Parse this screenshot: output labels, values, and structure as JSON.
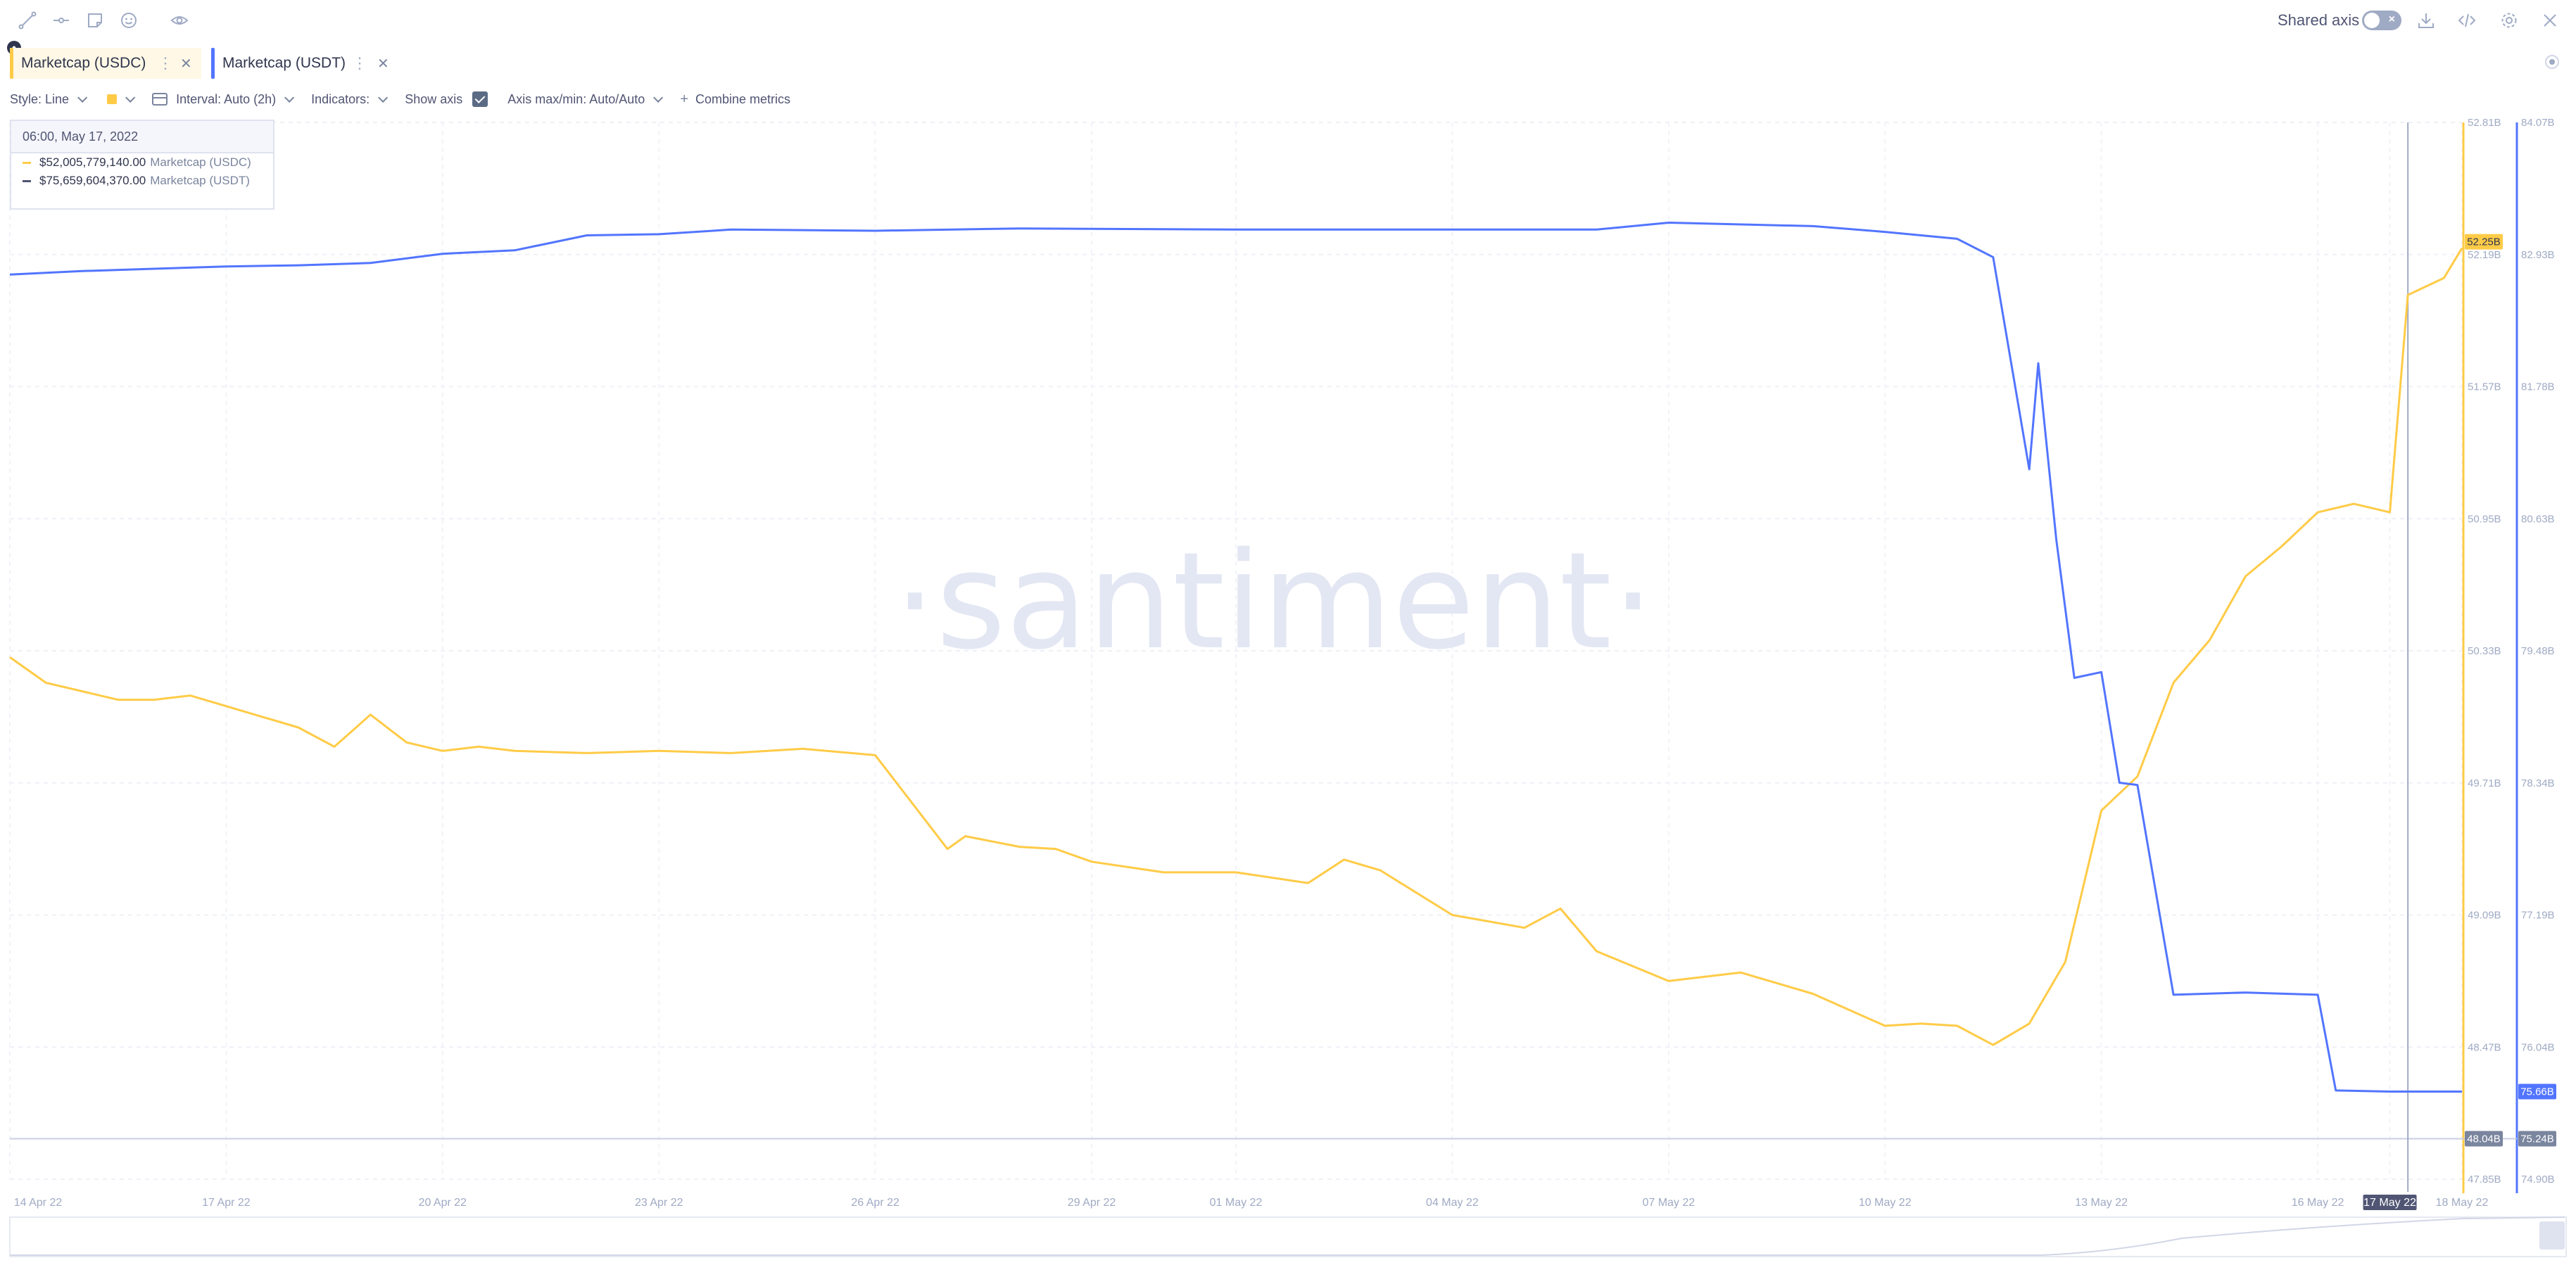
{
  "toolbar": {
    "icons": [
      "line-draw-icon",
      "segment-draw-icon",
      "note-icon",
      "emoji-icon",
      "eye-icon"
    ],
    "shared_axis_label": "Shared axis",
    "right_icons": [
      "download-icon",
      "embed-code-icon",
      "settings-icon",
      "close-icon"
    ]
  },
  "metrics": [
    {
      "label": "Marketcap (USDC)",
      "color": "#ffcb47"
    },
    {
      "label": "Marketcap (USDT)",
      "color": "#5275ff"
    }
  ],
  "settings": {
    "style": "Style: Line",
    "interval": "Interval: Auto (2h)",
    "indicators": "Indicators:",
    "show_axis": "Show axis",
    "axis_minmax": "Axis max/min: Auto/Auto",
    "combine": "Combine metrics"
  },
  "tooltip": {
    "date": "06:00, May 17, 2022",
    "rows": [
      {
        "value": "$52,005,779,140.00",
        "label": "Marketcap (USDC)",
        "color": "#ffcb47"
      },
      {
        "value": "$75,659,604,370.00",
        "label": "Marketcap (USDT)",
        "color": "#505573"
      }
    ]
  },
  "watermark": "·santiment·",
  "chart_data": {
    "type": "line",
    "x_ticks": [
      "14 Apr 22",
      "17 Apr 22",
      "20 Apr 22",
      "23 Apr 22",
      "26 Apr 22",
      "29 Apr 22",
      "01 May 22",
      "04 May 22",
      "07 May 22",
      "10 May 22",
      "13 May 22",
      "16 May 22",
      "17 May 22",
      "18 May 22"
    ],
    "x_range": [
      "2022-04-14",
      "2022-05-18"
    ],
    "crosshair_date": "17 May 22",
    "series": [
      {
        "name": "Marketcap (USDC)",
        "unit": "B USD",
        "color": "#ffcb47",
        "axis": "left",
        "axis_ticks": [
          "52.81B",
          "52.19B",
          "51.57B",
          "50.95B",
          "50.33B",
          "49.71B",
          "49.09B",
          "48.47B",
          "47.85B"
        ],
        "ylim": [
          47.85,
          52.81
        ],
        "last_value_label": "52.25B",
        "x": [
          "2022-04-14",
          "2022-04-14T12:00",
          "2022-04-15",
          "2022-04-15T12:00",
          "2022-04-16",
          "2022-04-16T12:00",
          "2022-04-17",
          "2022-04-17T12:00",
          "2022-04-18",
          "2022-04-18T12:00",
          "2022-04-19",
          "2022-04-19T12:00",
          "2022-04-20",
          "2022-04-20T12:00",
          "2022-04-21",
          "2022-04-22",
          "2022-04-23",
          "2022-04-24",
          "2022-04-25",
          "2022-04-26",
          "2022-04-27",
          "2022-04-27T06:00",
          "2022-04-28",
          "2022-04-28T12:00",
          "2022-04-29",
          "2022-04-30",
          "2022-05-01",
          "2022-05-02",
          "2022-05-02T12:00",
          "2022-05-03",
          "2022-05-04",
          "2022-05-05",
          "2022-05-05T12:00",
          "2022-05-06",
          "2022-05-07",
          "2022-05-08",
          "2022-05-09",
          "2022-05-10",
          "2022-05-10T12:00",
          "2022-05-11",
          "2022-05-11T12:00",
          "2022-05-12",
          "2022-05-12T12:00",
          "2022-05-13",
          "2022-05-13T12:00",
          "2022-05-14",
          "2022-05-14T12:00",
          "2022-05-15",
          "2022-05-15T12:00",
          "2022-05-16",
          "2022-05-16T12:00",
          "2022-05-17",
          "2022-05-17T06:00",
          "2022-05-17T18:00",
          "2022-05-18"
        ],
        "values": [
          50.3,
          50.18,
          50.14,
          50.1,
          50.1,
          50.12,
          50.07,
          50.02,
          49.97,
          49.88,
          50.03,
          49.9,
          49.86,
          49.88,
          49.86,
          49.85,
          49.86,
          49.85,
          49.87,
          49.84,
          49.4,
          49.46,
          49.41,
          49.4,
          49.34,
          49.29,
          49.29,
          49.24,
          49.35,
          49.3,
          49.09,
          49.03,
          49.12,
          48.92,
          48.78,
          48.82,
          48.72,
          48.57,
          48.58,
          48.57,
          48.48,
          48.58,
          48.87,
          49.58,
          49.74,
          50.18,
          50.38,
          50.68,
          50.82,
          50.98,
          51.02,
          50.98,
          52.0,
          52.08,
          52.22
        ]
      },
      {
        "name": "Marketcap (USDT)",
        "unit": "B USD",
        "color": "#5275ff",
        "axis": "right",
        "axis_ticks": [
          "84.07B",
          "82.93B",
          "81.78B",
          "80.63B",
          "79.48B",
          "78.34B",
          "77.19B",
          "76.04B",
          "74.90B"
        ],
        "ylim": [
          74.9,
          84.07
        ],
        "last_value_label": "75.66B",
        "x": [
          "2022-04-14",
          "2022-04-15",
          "2022-04-16",
          "2022-04-17",
          "2022-04-18",
          "2022-04-19",
          "2022-04-20",
          "2022-04-21",
          "2022-04-22",
          "2022-04-23",
          "2022-04-24",
          "2022-04-26",
          "2022-04-28",
          "2022-05-01",
          "2022-05-04",
          "2022-05-06",
          "2022-05-07",
          "2022-05-09",
          "2022-05-10",
          "2022-05-11",
          "2022-05-11T12:00",
          "2022-05-12",
          "2022-05-12T03:00",
          "2022-05-12T09:00",
          "2022-05-12T15:00",
          "2022-05-13",
          "2022-05-13T06:00",
          "2022-05-13T12:00",
          "2022-05-14",
          "2022-05-15",
          "2022-05-16",
          "2022-05-16T06:00",
          "2022-05-17",
          "2022-05-18"
        ],
        "values": [
          82.75,
          82.78,
          82.8,
          82.82,
          82.83,
          82.85,
          82.93,
          82.96,
          83.09,
          83.1,
          83.14,
          83.13,
          83.15,
          83.14,
          83.14,
          83.14,
          83.2,
          83.17,
          83.12,
          83.06,
          82.9,
          81.06,
          81.98,
          80.45,
          79.25,
          79.3,
          78.34,
          78.32,
          76.5,
          76.52,
          76.5,
          75.67,
          75.66,
          75.66
        ]
      }
    ],
    "baseline_label": "48.04B",
    "baseline_right_label": "75.24B",
    "grid": true
  }
}
